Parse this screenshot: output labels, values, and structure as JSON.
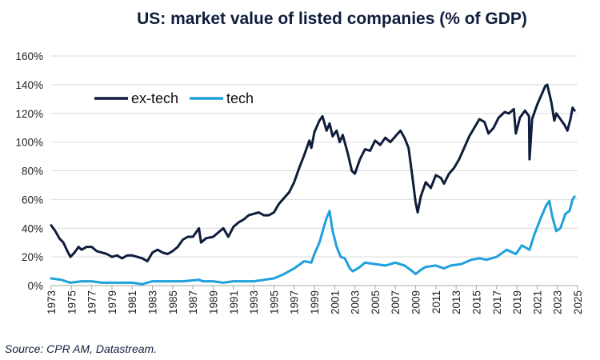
{
  "chart_data": {
    "type": "line",
    "title": "US: market value of listed companies (% of GDP)",
    "source": "Source: CPR AM, Datastream.",
    "xlabel": "",
    "ylabel": "",
    "xlim": [
      1973,
      2025
    ],
    "ylim": [
      0,
      160
    ],
    "y_ticks": [
      "0%",
      "20%",
      "40%",
      "60%",
      "80%",
      "100%",
      "120%",
      "140%",
      "160%"
    ],
    "x_ticks": [
      "1973",
      "1975",
      "1977",
      "1979",
      "1981",
      "1983",
      "1985",
      "1987",
      "1989",
      "1991",
      "1993",
      "1995",
      "1997",
      "1999",
      "2001",
      "2003",
      "2005",
      "2007",
      "2009",
      "2011",
      "2013",
      "2015",
      "2017",
      "2019",
      "2021",
      "2023",
      "2025"
    ],
    "grid": "horizontal",
    "legend_position": "top-left",
    "series": [
      {
        "name": "ex-tech",
        "color": "#0f1d3c",
        "points": [
          [
            1973.0,
            42
          ],
          [
            1973.4,
            38
          ],
          [
            1973.8,
            33
          ],
          [
            1974.2,
            30
          ],
          [
            1974.6,
            24
          ],
          [
            1974.9,
            20
          ],
          [
            1975.3,
            23
          ],
          [
            1975.7,
            27
          ],
          [
            1976.0,
            25
          ],
          [
            1976.5,
            27
          ],
          [
            1977.0,
            27
          ],
          [
            1977.5,
            24
          ],
          [
            1978.0,
            23
          ],
          [
            1978.5,
            22
          ],
          [
            1979.0,
            20
          ],
          [
            1979.5,
            21
          ],
          [
            1980.0,
            19
          ],
          [
            1980.5,
            21
          ],
          [
            1981.0,
            21
          ],
          [
            1981.5,
            20
          ],
          [
            1982.0,
            19
          ],
          [
            1982.5,
            17
          ],
          [
            1983.0,
            23
          ],
          [
            1983.5,
            25
          ],
          [
            1984.0,
            23
          ],
          [
            1984.5,
            22
          ],
          [
            1985.0,
            24
          ],
          [
            1985.5,
            27
          ],
          [
            1986.0,
            32
          ],
          [
            1986.5,
            34
          ],
          [
            1987.0,
            34
          ],
          [
            1987.6,
            40
          ],
          [
            1987.8,
            30
          ],
          [
            1988.3,
            33
          ],
          [
            1989.0,
            34
          ],
          [
            1989.5,
            37
          ],
          [
            1990.0,
            40
          ],
          [
            1990.5,
            34
          ],
          [
            1991.0,
            41
          ],
          [
            1991.5,
            44
          ],
          [
            1992.0,
            46
          ],
          [
            1992.5,
            49
          ],
          [
            1993.0,
            50
          ],
          [
            1993.5,
            51
          ],
          [
            1994.0,
            49
          ],
          [
            1994.5,
            49
          ],
          [
            1995.0,
            51
          ],
          [
            1995.5,
            57
          ],
          [
            1996.0,
            61
          ],
          [
            1996.5,
            65
          ],
          [
            1997.0,
            72
          ],
          [
            1997.5,
            82
          ],
          [
            1998.0,
            91
          ],
          [
            1998.5,
            101
          ],
          [
            1998.7,
            96
          ],
          [
            1999.0,
            107
          ],
          [
            1999.5,
            115
          ],
          [
            1999.8,
            118
          ],
          [
            2000.2,
            108
          ],
          [
            2000.5,
            113
          ],
          [
            2000.8,
            104
          ],
          [
            2001.2,
            108
          ],
          [
            2001.5,
            100
          ],
          [
            2001.8,
            105
          ],
          [
            2002.3,
            92
          ],
          [
            2002.7,
            80
          ],
          [
            2003.0,
            78
          ],
          [
            2003.5,
            88
          ],
          [
            2004.0,
            95
          ],
          [
            2004.5,
            94
          ],
          [
            2005.0,
            101
          ],
          [
            2005.5,
            98
          ],
          [
            2006.0,
            103
          ],
          [
            2006.5,
            100
          ],
          [
            2007.0,
            104
          ],
          [
            2007.5,
            108
          ],
          [
            2007.9,
            103
          ],
          [
            2008.3,
            96
          ],
          [
            2008.7,
            75
          ],
          [
            2009.0,
            58
          ],
          [
            2009.2,
            51
          ],
          [
            2009.5,
            62
          ],
          [
            2010.0,
            72
          ],
          [
            2010.5,
            68
          ],
          [
            2011.0,
            77
          ],
          [
            2011.5,
            75
          ],
          [
            2011.8,
            71
          ],
          [
            2012.3,
            78
          ],
          [
            2012.8,
            82
          ],
          [
            2013.3,
            88
          ],
          [
            2013.8,
            96
          ],
          [
            2014.3,
            104
          ],
          [
            2014.8,
            110
          ],
          [
            2015.3,
            116
          ],
          [
            2015.8,
            114
          ],
          [
            2016.2,
            106
          ],
          [
            2016.7,
            110
          ],
          [
            2017.2,
            117
          ],
          [
            2017.8,
            121
          ],
          [
            2018.2,
            120
          ],
          [
            2018.7,
            123
          ],
          [
            2018.9,
            106
          ],
          [
            2019.3,
            117
          ],
          [
            2019.8,
            122
          ],
          [
            2020.2,
            118
          ],
          [
            2020.25,
            88
          ],
          [
            2020.5,
            116
          ],
          [
            2021.0,
            126
          ],
          [
            2021.5,
            134
          ],
          [
            2021.8,
            139
          ],
          [
            2022.0,
            140
          ],
          [
            2022.4,
            128
          ],
          [
            2022.7,
            115
          ],
          [
            2022.9,
            120
          ],
          [
            2023.3,
            116
          ],
          [
            2023.7,
            112
          ],
          [
            2024.0,
            108
          ],
          [
            2024.3,
            116
          ],
          [
            2024.5,
            124
          ],
          [
            2024.7,
            122
          ]
        ]
      },
      {
        "name": "tech",
        "color": "#1fa0dc",
        "points": [
          [
            1973.0,
            5
          ],
          [
            1974.0,
            4
          ],
          [
            1974.9,
            2
          ],
          [
            1976.0,
            3
          ],
          [
            1977.0,
            3
          ],
          [
            1978.0,
            2
          ],
          [
            1979.0,
            2
          ],
          [
            1980.0,
            2
          ],
          [
            1981.0,
            2
          ],
          [
            1982.0,
            1
          ],
          [
            1983.0,
            3
          ],
          [
            1984.0,
            3
          ],
          [
            1985.0,
            3
          ],
          [
            1986.0,
            3
          ],
          [
            1987.6,
            4
          ],
          [
            1988.0,
            3
          ],
          [
            1989.0,
            3
          ],
          [
            1990.0,
            2
          ],
          [
            1991.0,
            3
          ],
          [
            1992.0,
            3
          ],
          [
            1993.0,
            3
          ],
          [
            1994.0,
            4
          ],
          [
            1995.0,
            5
          ],
          [
            1996.0,
            8
          ],
          [
            1997.0,
            12
          ],
          [
            1998.0,
            17
          ],
          [
            1998.7,
            16
          ],
          [
            1999.0,
            22
          ],
          [
            1999.5,
            30
          ],
          [
            1999.9,
            40
          ],
          [
            2000.2,
            47
          ],
          [
            2000.5,
            52
          ],
          [
            2000.8,
            38
          ],
          [
            2001.2,
            27
          ],
          [
            2001.6,
            20
          ],
          [
            2002.0,
            19
          ],
          [
            2002.5,
            12
          ],
          [
            2002.8,
            10
          ],
          [
            2003.5,
            13
          ],
          [
            2004.0,
            16
          ],
          [
            2005.0,
            15
          ],
          [
            2006.0,
            14
          ],
          [
            2007.0,
            16
          ],
          [
            2007.9,
            14
          ],
          [
            2008.7,
            10
          ],
          [
            2009.0,
            8
          ],
          [
            2009.5,
            11
          ],
          [
            2010.0,
            13
          ],
          [
            2011.0,
            14
          ],
          [
            2011.8,
            12
          ],
          [
            2012.5,
            14
          ],
          [
            2013.5,
            15
          ],
          [
            2014.5,
            18
          ],
          [
            2015.3,
            19
          ],
          [
            2016.0,
            18
          ],
          [
            2017.0,
            20
          ],
          [
            2018.0,
            25
          ],
          [
            2018.9,
            22
          ],
          [
            2019.5,
            28
          ],
          [
            2020.25,
            25
          ],
          [
            2020.7,
            35
          ],
          [
            2021.3,
            46
          ],
          [
            2021.9,
            56
          ],
          [
            2022.2,
            59
          ],
          [
            2022.5,
            48
          ],
          [
            2022.9,
            38
          ],
          [
            2023.3,
            40
          ],
          [
            2023.8,
            50
          ],
          [
            2024.2,
            52
          ],
          [
            2024.5,
            60
          ],
          [
            2024.7,
            62
          ]
        ]
      }
    ]
  }
}
